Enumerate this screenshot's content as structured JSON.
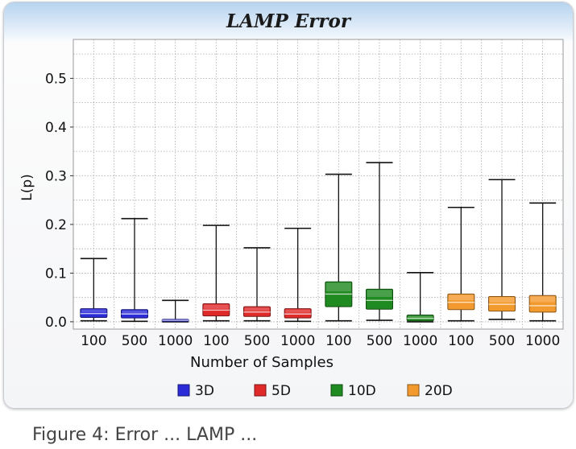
{
  "figure": {
    "caption_fragment": "Figure 4: Error ... LAMP ..."
  },
  "colors": {
    "grid": "#a8a8a8",
    "3D": "#2b2bd8",
    "5D": "#e02a2a",
    "10D": "#1f8a1f",
    "20D": "#f39a2e"
  },
  "chart_data": {
    "type": "box",
    "title": "LAMP Error",
    "xlabel": "Number of Samples",
    "ylabel": "L(p)",
    "ylim": [
      -0.015,
      0.58
    ],
    "yticks": [
      0.0,
      0.1,
      0.2,
      0.3,
      0.4,
      0.5
    ],
    "ytick_labels": [
      "0.0",
      "0.1",
      "0.2",
      "0.3",
      "0.4",
      "0.5"
    ],
    "grid": true,
    "legend_position": "bottom",
    "categories": [
      "100",
      "500",
      "1000",
      "100",
      "500",
      "1000",
      "100",
      "500",
      "1000",
      "100",
      "500",
      "1000"
    ],
    "series": [
      {
        "name": "3D",
        "color": "#2b2bd8",
        "boxes": [
          {
            "sample": "100",
            "min": 0.002,
            "q1": 0.009,
            "median": 0.017,
            "q3": 0.027,
            "max": 0.13
          },
          {
            "sample": "500",
            "min": 0.001,
            "q1": 0.008,
            "median": 0.016,
            "q3": 0.025,
            "max": 0.212
          },
          {
            "sample": "1000",
            "min": 0.0,
            "q1": 0.001,
            "median": 0.003,
            "q3": 0.005,
            "max": 0.044
          }
        ]
      },
      {
        "name": "5D",
        "color": "#e02a2a",
        "boxes": [
          {
            "sample": "100",
            "min": 0.002,
            "q1": 0.012,
            "median": 0.024,
            "q3": 0.037,
            "max": 0.198
          },
          {
            "sample": "500",
            "min": 0.002,
            "q1": 0.011,
            "median": 0.02,
            "q3": 0.031,
            "max": 0.152
          },
          {
            "sample": "1000",
            "min": 0.001,
            "q1": 0.008,
            "median": 0.016,
            "q3": 0.027,
            "max": 0.192
          }
        ]
      },
      {
        "name": "10D",
        "color": "#1f8a1f",
        "boxes": [
          {
            "sample": "100",
            "min": 0.002,
            "q1": 0.031,
            "median": 0.057,
            "q3": 0.082,
            "max": 0.303
          },
          {
            "sample": "500",
            "min": 0.003,
            "q1": 0.026,
            "median": 0.044,
            "q3": 0.067,
            "max": 0.327
          },
          {
            "sample": "1000",
            "min": 0.0,
            "q1": 0.002,
            "median": 0.007,
            "q3": 0.014,
            "max": 0.101
          }
        ]
      },
      {
        "name": "20D",
        "color": "#f39a2e",
        "boxes": [
          {
            "sample": "100",
            "min": 0.002,
            "q1": 0.025,
            "median": 0.04,
            "q3": 0.057,
            "max": 0.235
          },
          {
            "sample": "500",
            "min": 0.005,
            "q1": 0.022,
            "median": 0.036,
            "q3": 0.052,
            "max": 0.292
          },
          {
            "sample": "1000",
            "min": 0.002,
            "q1": 0.02,
            "median": 0.033,
            "q3": 0.054,
            "max": 0.244
          }
        ]
      }
    ]
  }
}
